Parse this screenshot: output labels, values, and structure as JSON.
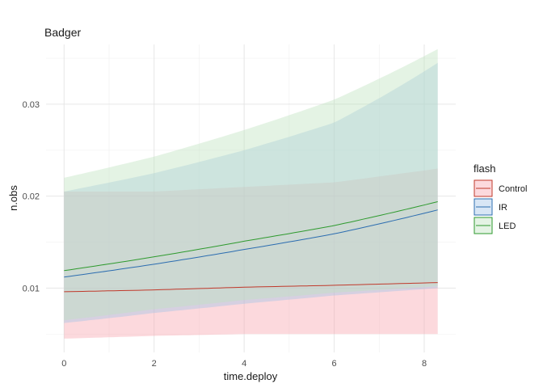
{
  "chart_data": {
    "type": "line",
    "title": "Badger",
    "xlabel": "time.deploy",
    "ylabel": "n.obs",
    "xlim": [
      -0.4,
      8.7
    ],
    "ylim": [
      0.003,
      0.0365
    ],
    "x_ticks": [
      0,
      2,
      4,
      6,
      8
    ],
    "x_tick_labels": [
      "0",
      "2",
      "4",
      "6",
      "8"
    ],
    "y_ticks": [
      0.01,
      0.02,
      0.03
    ],
    "y_tick_labels": [
      "0.01",
      "0.02",
      "0.03"
    ],
    "grid": true,
    "legend": {
      "title": "flash",
      "placement": "right"
    },
    "x": [
      0,
      2,
      4,
      6,
      8.3
    ],
    "series": [
      {
        "name": "Control",
        "color": "#c0392b",
        "fill": "#f8a5ad",
        "values": [
          0.0096,
          0.0098,
          0.0101,
          0.0103,
          0.0106
        ],
        "lower": [
          0.0045,
          0.0048,
          0.005,
          0.005,
          0.005
        ],
        "upper": [
          0.0205,
          0.0205,
          0.021,
          0.0215,
          0.023
        ]
      },
      {
        "name": "IR",
        "color": "#2c6db0",
        "fill": "#a3c4e8",
        "values": [
          0.0112,
          0.0126,
          0.0142,
          0.0159,
          0.0185
        ],
        "lower": [
          0.0062,
          0.0073,
          0.0083,
          0.0092,
          0.01
        ],
        "upper": [
          0.0205,
          0.0225,
          0.025,
          0.028,
          0.0345
        ]
      },
      {
        "name": "LED",
        "color": "#2e9a2e",
        "fill": "#bfe3bf",
        "values": [
          0.0119,
          0.0134,
          0.0151,
          0.0168,
          0.0194
        ],
        "lower": [
          0.0065,
          0.0077,
          0.0087,
          0.0095,
          0.0102
        ],
        "upper": [
          0.022,
          0.0243,
          0.0272,
          0.0305,
          0.036
        ]
      }
    ]
  }
}
